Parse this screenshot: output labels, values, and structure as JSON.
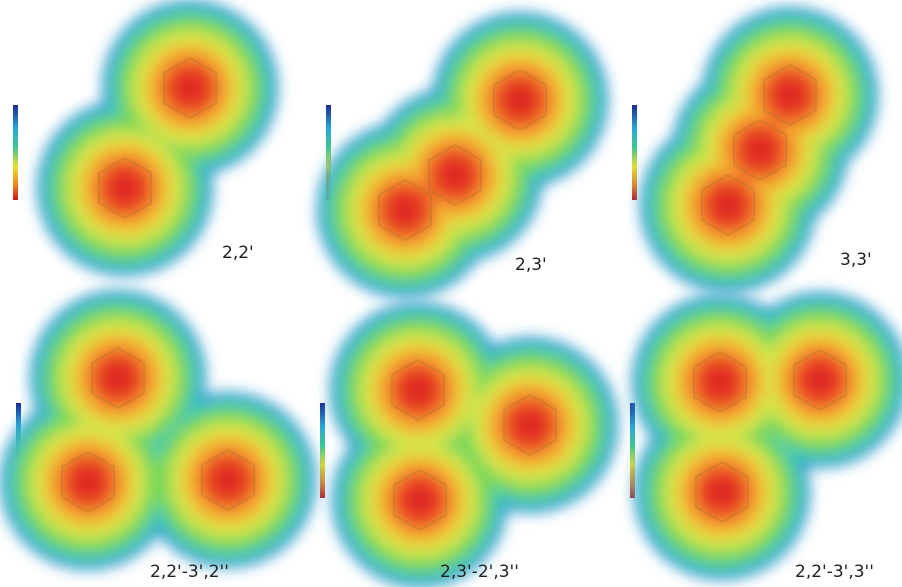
{
  "panels": [
    {
      "label": "2,2'"
    },
    {
      "label": "2,3'"
    },
    {
      "label": "3,3'"
    },
    {
      "label": "2,2'-3',2''"
    },
    {
      "label": "2,3'-2',3''"
    },
    {
      "label": "2,2'-3',3''"
    }
  ]
}
